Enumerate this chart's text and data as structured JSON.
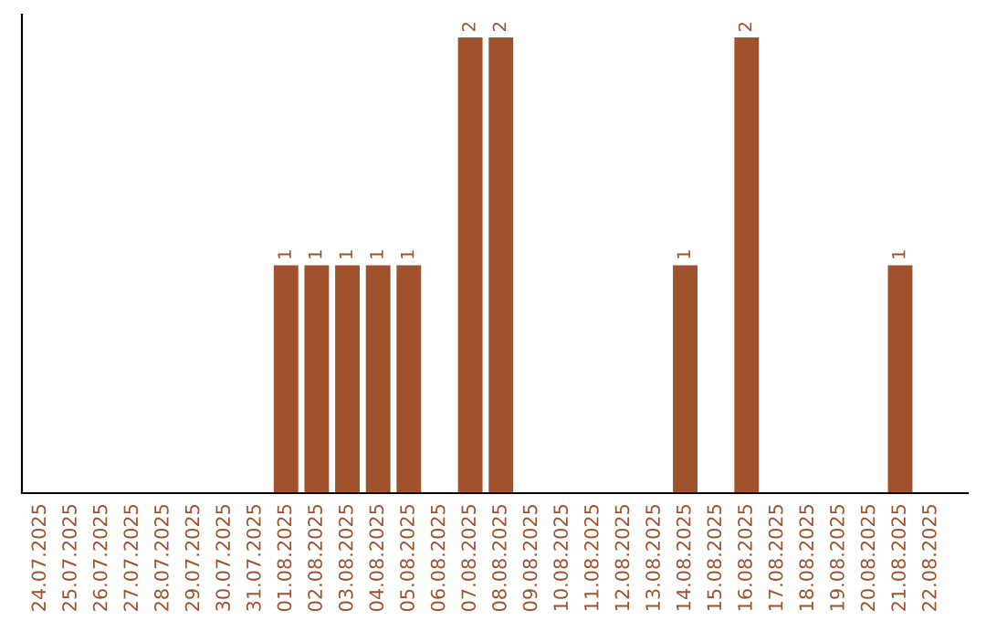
{
  "chart_data": {
    "type": "bar",
    "categories": [
      "24.07.2025",
      "25.07.2025",
      "26.07.2025",
      "27.07.2025",
      "28.07.2025",
      "29.07.2025",
      "30.07.2025",
      "31.07.2025",
      "01.08.2025",
      "02.08.2025",
      "03.08.2025",
      "04.08.2025",
      "05.08.2025",
      "06.08.2025",
      "07.08.2025",
      "08.08.2025",
      "09.08.2025",
      "10.08.2025",
      "11.08.2025",
      "12.08.2025",
      "13.08.2025",
      "14.08.2025",
      "15.08.2025",
      "16.08.2025",
      "17.08.2025",
      "18.08.2025",
      "19.08.2025",
      "20.08.2025",
      "21.08.2025",
      "22.08.2025"
    ],
    "values": [
      0,
      0,
      0,
      0,
      0,
      0,
      0,
      0,
      1,
      1,
      1,
      1,
      1,
      0,
      2,
      2,
      0,
      0,
      0,
      0,
      0,
      1,
      0,
      2,
      0,
      0,
      0,
      0,
      1,
      0
    ],
    "value_labels": [
      null,
      null,
      null,
      null,
      null,
      null,
      null,
      null,
      "1",
      "1",
      "1",
      "1",
      "1",
      null,
      "2",
      "2",
      null,
      null,
      null,
      null,
      null,
      "1",
      null,
      "2",
      null,
      null,
      null,
      null,
      "1",
      null
    ],
    "color": "#a0522d",
    "grid": false,
    "legend": false,
    "tick_labels": "x"
  }
}
